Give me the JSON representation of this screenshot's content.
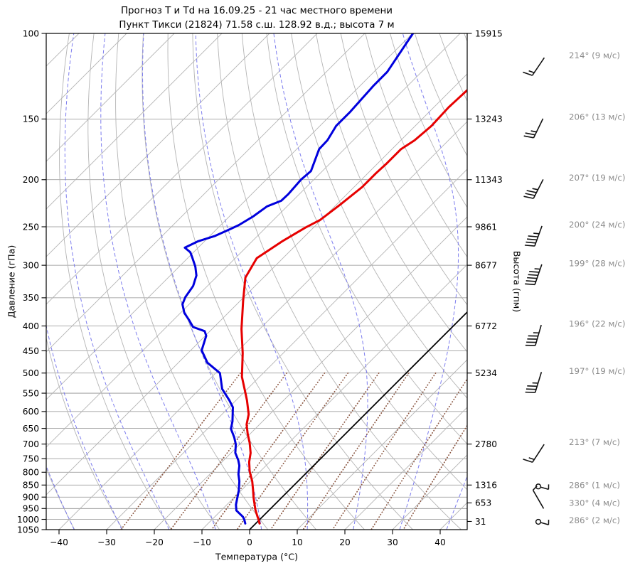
{
  "title": {
    "line1": "Прогноз Т и Td на 16.09.25 - 21 час местного времени",
    "line2": "Пункт Тикси (21824) 71.58 с.ш. 128.92 в.д.; высота 7 м"
  },
  "chart_data": {
    "type": "line",
    "variant": "skew-t-log-p",
    "xlabel": "Температура (°C)",
    "ylabel_left": "Давление (гПа)",
    "ylabel_right": "Высота (гпм)",
    "x_range_c": [
      -43,
      46
    ],
    "p_range_hpa": [
      100,
      1050
    ],
    "skew": "45deg",
    "grid": true,
    "pressure_ticks_hpa": [
      100,
      150,
      200,
      250,
      300,
      350,
      400,
      450,
      500,
      550,
      600,
      650,
      700,
      750,
      800,
      850,
      900,
      950,
      1000,
      1050
    ],
    "temp_ticks_c": [
      {
        "v": -40,
        "label": "−40"
      },
      {
        "v": -30,
        "label": "−30"
      },
      {
        "v": -20,
        "label": "−20"
      },
      {
        "v": -10,
        "label": "−10"
      },
      {
        "v": 0,
        "label": "0"
      },
      {
        "v": 10,
        "label": "10"
      },
      {
        "v": 20,
        "label": "20"
      },
      {
        "v": 30,
        "label": "30"
      },
      {
        "v": 40,
        "label": "40"
      }
    ],
    "height_ticks_gpm": [
      {
        "p": 100,
        "label": "15915"
      },
      {
        "p": 150,
        "label": "13243"
      },
      {
        "p": 200,
        "label": "11343"
      },
      {
        "p": 250,
        "label": "9861"
      },
      {
        "p": 300,
        "label": "8677"
      },
      {
        "p": 400,
        "label": "6772"
      },
      {
        "p": 500,
        "label": "5234"
      },
      {
        "p": 700,
        "label": "2780"
      },
      {
        "p": 850,
        "label": "1316"
      },
      {
        "p": 925,
        "label": "653"
      },
      {
        "p": 1010,
        "label": "31"
      }
    ],
    "series": [
      {
        "name": "temperature",
        "color": "#e60000",
        "points": [
          [
            1020,
            0.8
          ],
          [
            1000,
            -0.3
          ],
          [
            985,
            -1.2
          ],
          [
            955,
            -3.0
          ],
          [
            902,
            -5.9
          ],
          [
            872,
            -7.5
          ],
          [
            835,
            -9.6
          ],
          [
            797,
            -12.2
          ],
          [
            762,
            -14.3
          ],
          [
            730,
            -15.9
          ],
          [
            696,
            -18.2
          ],
          [
            667,
            -20.5
          ],
          [
            638,
            -22.7
          ],
          [
            608,
            -24.4
          ],
          [
            569,
            -27.7
          ],
          [
            544,
            -30.1
          ],
          [
            509,
            -33.7
          ],
          [
            455,
            -38.5
          ],
          [
            406,
            -43.8
          ],
          [
            355,
            -49.4
          ],
          [
            318,
            -53.8
          ],
          [
            290,
            -55.5
          ],
          [
            268,
            -53.7
          ],
          [
            251,
            -51.7
          ],
          [
            242,
            -50.2
          ],
          [
            225,
            -49.2
          ],
          [
            207,
            -48.3
          ],
          [
            194,
            -48.3
          ],
          [
            185,
            -48.1
          ],
          [
            173,
            -48.1
          ],
          [
            166,
            -47.1
          ],
          [
            155,
            -46.6
          ],
          [
            142,
            -46.9
          ],
          [
            131,
            -46.6
          ],
          [
            124,
            -45.6
          ]
        ]
      },
      {
        "name": "dewpoint",
        "color": "#0000dd",
        "points": [
          [
            1020,
            -2.2
          ],
          [
            1000,
            -3.3
          ],
          [
            988,
            -4.1
          ],
          [
            959,
            -6.8
          ],
          [
            933,
            -8.1
          ],
          [
            902,
            -9.3
          ],
          [
            872,
            -10.5
          ],
          [
            835,
            -12.3
          ],
          [
            807,
            -14.0
          ],
          [
            775,
            -15.6
          ],
          [
            755,
            -17.0
          ],
          [
            730,
            -19.1
          ],
          [
            701,
            -20.8
          ],
          [
            678,
            -22.6
          ],
          [
            651,
            -25.1
          ],
          [
            629,
            -26.3
          ],
          [
            588,
            -29.2
          ],
          [
            569,
            -31.4
          ],
          [
            539,
            -35.3
          ],
          [
            500,
            -39.1
          ],
          [
            476,
            -43.9
          ],
          [
            449,
            -47.7
          ],
          [
            419,
            -49.8
          ],
          [
            410,
            -51.1
          ],
          [
            402,
            -54.4
          ],
          [
            389,
            -56.7
          ],
          [
            376,
            -59.2
          ],
          [
            361,
            -61.4
          ],
          [
            349,
            -62.3
          ],
          [
            331,
            -63.0
          ],
          [
            315,
            -64.5
          ],
          [
            302,
            -66.6
          ],
          [
            289,
            -69.2
          ],
          [
            282,
            -70.7
          ],
          [
            276,
            -72.8
          ],
          [
            268,
            -71.4
          ],
          [
            261,
            -68.9
          ],
          [
            253,
            -67.2
          ],
          [
            248,
            -66.2
          ],
          [
            238,
            -65.0
          ],
          [
            227,
            -64.2
          ],
          [
            221,
            -62.4
          ],
          [
            214,
            -62.3
          ],
          [
            200,
            -62.7
          ],
          [
            192,
            -62.4
          ],
          [
            173,
            -65.3
          ],
          [
            166,
            -65.4
          ],
          [
            155,
            -66.6
          ],
          [
            145,
            -66.6
          ],
          [
            128,
            -67.2
          ],
          [
            120,
            -67.2
          ],
          [
            100,
            -69.9
          ]
        ]
      }
    ],
    "winds": [
      {
        "p": 112,
        "dir": 214,
        "speed": 9,
        "label": "214° (9 м/с)"
      },
      {
        "p": 150,
        "dir": 206,
        "speed": 13,
        "label": "206° (13 м/с)"
      },
      {
        "p": 200,
        "dir": 207,
        "speed": 19,
        "label": "207° (19 м/с)"
      },
      {
        "p": 250,
        "dir": 200,
        "speed": 24,
        "label": "200° (24 м/с)"
      },
      {
        "p": 300,
        "dir": 199,
        "speed": 28,
        "label": "199° (28 м/с)"
      },
      {
        "p": 400,
        "dir": 196,
        "speed": 22,
        "label": "196° (22 м/с)"
      },
      {
        "p": 500,
        "dir": 197,
        "speed": 19,
        "label": "197° (19 м/с)"
      },
      {
        "p": 700,
        "dir": 213,
        "speed": 7,
        "label": "213° (7 м/с)"
      },
      {
        "p": 850,
        "dir": 286,
        "speed": 1,
        "label": "286° (1 м/с)"
      },
      {
        "p": 925,
        "dir": 330,
        "speed": 4,
        "label": "330° (4 м/с)"
      },
      {
        "p": 1005,
        "dir": 286,
        "speed": 2,
        "label": "286° (2 м/с)"
      }
    ],
    "isopleths": {
      "isotherm_step_c": 10,
      "isotherm_min_c": -150,
      "isotherm_max_c": 40,
      "zero_isotherm_c": 0,
      "dry_adiabat_theta_c": {
        "min": -40,
        "max": 150,
        "step": 10
      },
      "moist_adiabat_thetaw_c": {
        "min": -60,
        "max": 40,
        "step": 10
      },
      "mixing_ratio_g_kg": [
        0.4,
        1,
        2,
        3,
        5,
        8,
        12,
        20,
        30
      ],
      "mixing_ratio_top_hpa": 500
    },
    "style": {
      "temperature_color": "#e60000",
      "dewpoint_color": "#0000dd",
      "isotherm_color": "#b4b4b4",
      "dry_adiabat_color": "#b4b4b4",
      "moist_adiabat_color": "#7d7dee",
      "mixing_ratio_color": "#8b5742",
      "grid_color": "#8f8f8f",
      "zero_isotherm_color": "#000000",
      "wind_label_color": "#8c8c8c",
      "barb_color": "#111111",
      "axis_color": "#000000"
    }
  }
}
